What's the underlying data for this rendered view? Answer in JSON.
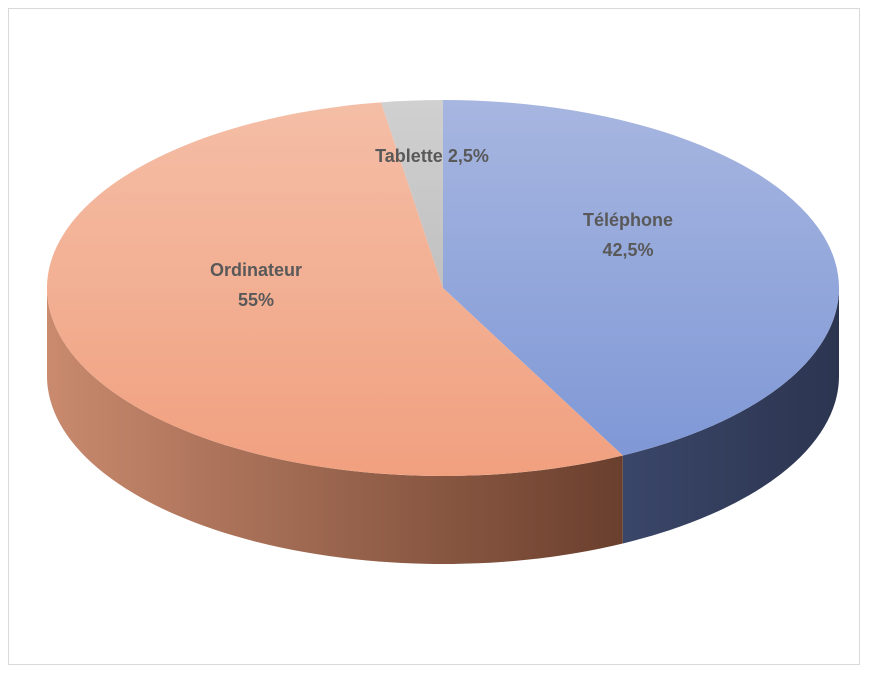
{
  "chart_data": {
    "type": "pie",
    "title": "",
    "legend": "none",
    "slices": [
      {
        "label": "Téléphone",
        "value": 42.5,
        "value_label": "42,5%",
        "color": "#8fa5da",
        "side_color": "#2f3b58",
        "label_mode": "two-line"
      },
      {
        "label": "Ordinateur",
        "value": 55,
        "value_label": "55%",
        "color": "#f2a585",
        "side_color": "#b56e52",
        "label_mode": "two-line"
      },
      {
        "label": "Tablette",
        "value": 2.5,
        "value_label": "2,5%",
        "color": "#c9c9c9",
        "side_color": "#8c8c8c",
        "label_mode": "one-line"
      }
    ]
  }
}
